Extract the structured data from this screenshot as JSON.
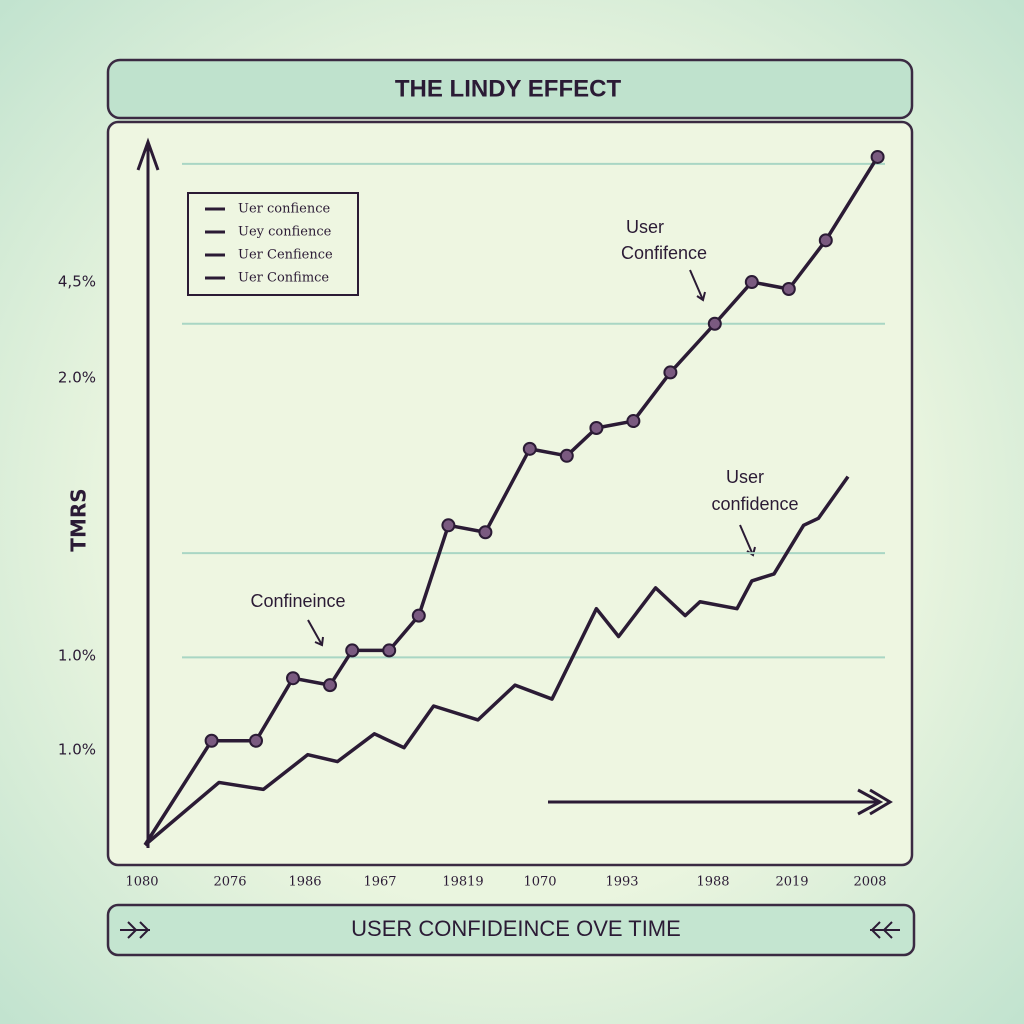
{
  "chart_data": {
    "type": "line",
    "title": "THE LINDY  EFFECT",
    "subtitle": "USER  CONFIDEINCE OVE TIME",
    "y_label": "TMRS",
    "x_axis_labels": [
      "1080",
      "2076",
      "1986",
      "1967",
      "19819",
      "1070",
      "1993",
      "1988",
      "2019",
      "2008"
    ],
    "y_axis_labels": [
      "4,5%",
      "2.0%",
      "1.0%",
      "1.0%"
    ],
    "legend": [
      "Uer confience",
      "Uey confience",
      "Uer Cenfience",
      "Uer Confimce"
    ],
    "annotations": [
      "User",
      "Confifence",
      "User",
      "confidence",
      "Confineince"
    ],
    "xlim": [
      0,
      100
    ],
    "ylim": [
      0,
      100
    ],
    "grid": true,
    "grid_lines": [
      98,
      75,
      42,
      27
    ],
    "series": [
      {
        "color": "#2b1b35",
        "markers": true,
        "x": [
          0,
          9,
          15,
          20,
          25,
          28,
          33,
          37,
          41,
          46,
          52,
          57,
          61,
          66,
          71,
          77,
          82,
          87,
          92,
          99
        ],
        "values": [
          0,
          15,
          15,
          24,
          23,
          28,
          28,
          33,
          46,
          45,
          57,
          56,
          60,
          61,
          68,
          75,
          81,
          80,
          87,
          99
        ]
      },
      {
        "color": "#2b1b35",
        "markers": false,
        "x": [
          0,
          10,
          16,
          22,
          26,
          31,
          35,
          39,
          45,
          50,
          55,
          61,
          64,
          69,
          73,
          75,
          80,
          82,
          85,
          89,
          91,
          95
        ],
        "values": [
          0,
          9,
          8,
          13,
          12,
          16,
          14,
          20,
          18,
          23,
          21,
          34,
          30,
          37,
          33,
          35,
          34,
          38,
          39,
          46,
          47,
          53
        ]
      }
    ]
  }
}
